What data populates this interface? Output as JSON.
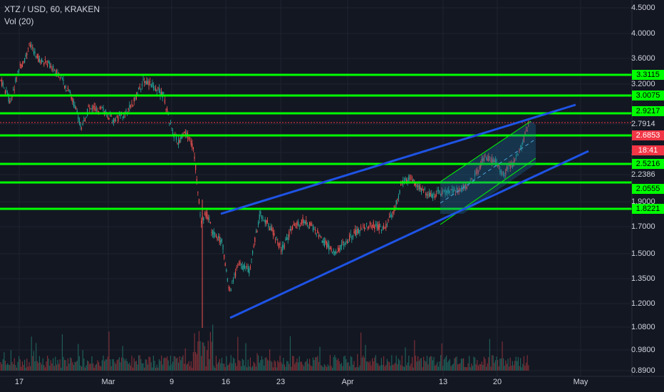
{
  "header": {
    "symbol_line": "XTZ / USD, 60, KRAKEN",
    "volume_line": "Vol (20)"
  },
  "axis": {
    "y_ticks": [
      "4.5000",
      "4.0000",
      "3.6000",
      "3.2000",
      "2.7914",
      "2.5216",
      "2.2386",
      "1.9000",
      "1.7000",
      "1.5000",
      "1.3500",
      "1.2000",
      "1.0800",
      "0.9800",
      "0.8900"
    ],
    "x_ticks": [
      "17",
      "Mar",
      "9",
      "16",
      "23",
      "Apr",
      "13",
      "20",
      "May"
    ]
  },
  "price_levels": [
    {
      "label": "3.3115",
      "color": "#00ff00"
    },
    {
      "label": "3.0075",
      "color": "#00ff00"
    },
    {
      "label": "2.9217",
      "color": "#00ff00"
    },
    {
      "label": "2.6853",
      "color": "#f23645"
    },
    {
      "label": "18:41",
      "color": "#f23645"
    },
    {
      "label": "2.5216",
      "color": "#00ff00"
    },
    {
      "label": "2.0555",
      "color": "#00ff00"
    },
    {
      "label": "1.8221",
      "color": "#00ff00"
    }
  ],
  "colors": {
    "background": "#131722",
    "support_lines": "#00ff00",
    "trend_lines": "#1e53e5",
    "channel_fill": "#1e6a9a",
    "up_candle": "#26a69a",
    "down_candle": "#ef5350",
    "last_price": "#f23645"
  }
}
